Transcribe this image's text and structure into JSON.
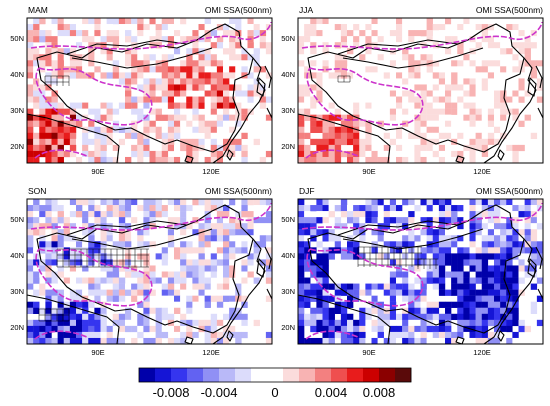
{
  "panels": [
    {
      "season": "MAM",
      "variable": "OMI SSA(500nm)",
      "seed": 11,
      "bias": 0.00035,
      "amp": 0.003,
      "hatch": "mam"
    },
    {
      "season": "JJA",
      "variable": "OMI SSA(500nm)",
      "seed": 23,
      "bias": 0.0004,
      "amp": 0.0018,
      "hatch": "jja"
    },
    {
      "season": "SON",
      "variable": "OMI SSA(500nm)",
      "seed": 37,
      "bias": -0.0012,
      "amp": 0.0035,
      "hatch": "son"
    },
    {
      "season": "DJF",
      "variable": "OMI SSA(500nm)",
      "seed": 53,
      "bias": -0.003,
      "amp": 0.0045,
      "hatch": "djf"
    }
  ],
  "axes": {
    "lat_labels": [
      "20N",
      "30N",
      "40N",
      "50N"
    ],
    "lon_labels": [
      "90E",
      "120E"
    ]
  },
  "colorbar": {
    "labels": [
      "-0.008",
      "-0.004",
      "0",
      "0.004",
      "0.008"
    ],
    "colors": [
      "#0000aa",
      "#1515d6",
      "#3535ef",
      "#6262f2",
      "#9090f5",
      "#b9b9f8",
      "#dcdcfb",
      "#ffffff",
      "#ffffff",
      "#fbdcdc",
      "#f8b3b3",
      "#f38080",
      "#ef4f4f",
      "#e81c1c",
      "#cc0000",
      "#8b0000",
      "#5a0a0a"
    ]
  },
  "colors": {
    "plateau_contour": "#cc33cc",
    "coast": "#000000",
    "hatch": "#000000"
  }
}
